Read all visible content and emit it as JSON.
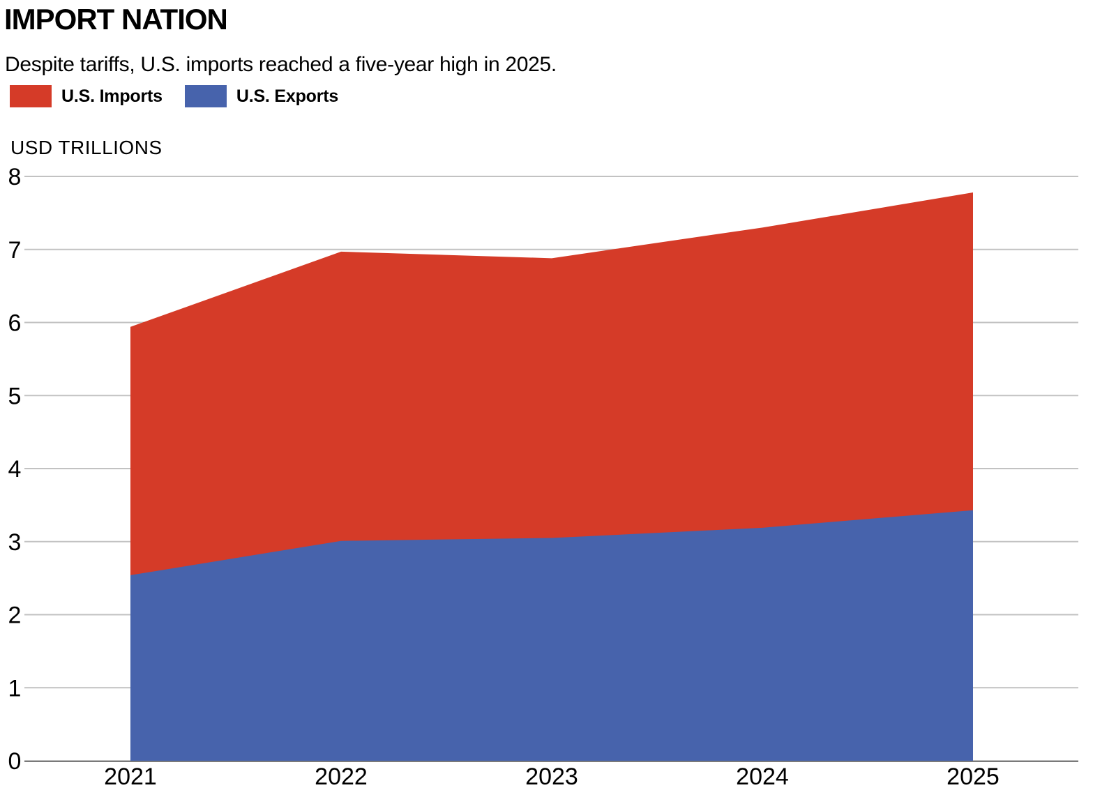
{
  "header": {
    "title": "IMPORT NATION",
    "subtitle": "Despite tariffs, U.S. imports reached a five-year high in 2025."
  },
  "legend": [
    {
      "label": "U.S. Imports",
      "color": "#d53b28"
    },
    {
      "label": "U.S. Exports",
      "color": "#4763ac"
    }
  ],
  "chart_data": {
    "type": "area",
    "stacked": true,
    "title": "IMPORT NATION",
    "subtitle": "Despite tariffs, U.S. imports reached a five-year high in 2025.",
    "unit_label": "USD TRILLIONS",
    "categories": [
      "2021",
      "2022",
      "2023",
      "2024",
      "2025"
    ],
    "series": [
      {
        "name": "U.S. Exports",
        "color": "#4763ac",
        "values": [
          2.54,
          3.01,
          3.05,
          3.19,
          3.43
        ]
      },
      {
        "name": "U.S. Imports",
        "color": "#d53b28",
        "values": [
          3.4,
          3.96,
          3.83,
          4.11,
          4.35
        ]
      }
    ],
    "stacked_totals": [
      5.94,
      6.97,
      6.88,
      7.3,
      7.78
    ],
    "xlabel": "",
    "ylabel": "USD TRILLIONS",
    "ylim": [
      0,
      8
    ],
    "ytick_interval": 1,
    "yticks": [
      0,
      1,
      2,
      3,
      4,
      5,
      6,
      7,
      8
    ],
    "grid": true,
    "gridline_color": "#c2c2c2",
    "axis_line_color": "#7a7a7a",
    "legend_position": "top-left"
  }
}
